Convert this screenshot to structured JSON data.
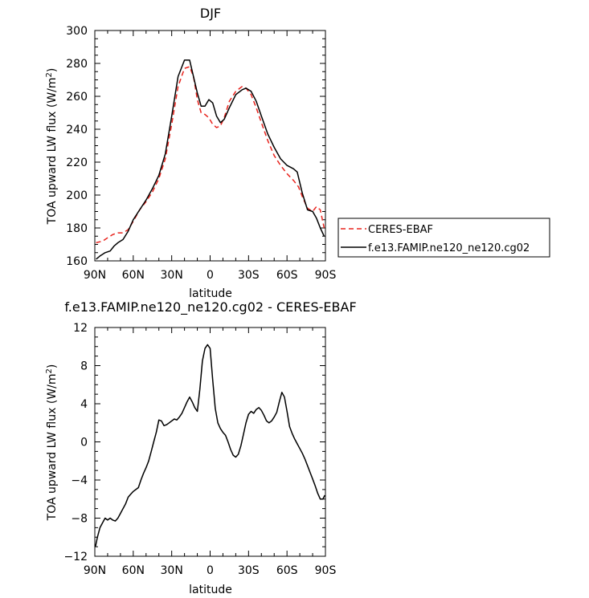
{
  "chart_data": [
    {
      "type": "line",
      "title": "DJF",
      "xlabel": "latitude",
      "ylabel": "TOA upward LW flux (W/m",
      "ylabel_sup": "2",
      "ylabel_close": ")",
      "xlim": [
        90,
        -90
      ],
      "ylim": [
        160,
        300
      ],
      "xticks": [
        90,
        60,
        30,
        0,
        -30,
        -60,
        -90
      ],
      "xtick_labels": [
        "90N",
        "60N",
        "30N",
        "0",
        "30S",
        "60S",
        "90S"
      ],
      "yticks": [
        160,
        180,
        200,
        220,
        240,
        260,
        280,
        300
      ],
      "legend": {
        "placement": "right"
      },
      "series": [
        {
          "name": "CERES-EBAF",
          "color": "#e8231d",
          "dash": "dashed",
          "x": [
            89,
            84,
            80,
            76,
            72,
            68,
            64,
            60,
            55,
            50,
            45,
            40,
            35,
            30,
            25,
            20,
            16,
            13,
            10,
            7,
            4,
            1,
            -2,
            -5,
            -8,
            -11,
            -15,
            -20,
            -25,
            -28,
            -32,
            -36,
            -40,
            -45,
            -50,
            -55,
            -60,
            -65,
            -69,
            -72,
            -76,
            -80,
            -83,
            -86,
            -89
          ],
          "y": [
            171,
            172,
            174,
            176,
            177,
            177,
            179,
            184,
            191,
            196,
            202,
            210,
            222,
            243,
            266,
            277,
            278,
            272,
            258,
            250,
            249,
            247,
            243,
            241,
            242,
            247,
            257,
            263,
            266,
            265,
            261,
            253,
            244,
            233,
            224,
            218,
            213,
            209,
            205,
            199,
            192,
            190,
            193,
            191,
            180
          ]
        },
        {
          "name": "f.e13.FAMIP.ne120_ne120.cg02",
          "color": "#000000",
          "dash": "solid",
          "x": [
            89,
            86,
            82,
            78,
            75,
            72,
            68,
            64,
            60,
            55,
            50,
            45,
            40,
            35,
            30,
            25,
            20,
            16,
            13,
            10,
            7,
            4,
            1,
            -2,
            -5,
            -8,
            -11,
            -15,
            -20,
            -25,
            -28,
            -32,
            -36,
            -40,
            -45,
            -50,
            -55,
            -60,
            -65,
            -68,
            -72,
            -76,
            -80,
            -83,
            -86,
            -89
          ],
          "y": [
            161,
            163,
            165,
            166,
            169,
            171,
            173,
            178,
            185,
            191,
            197,
            204,
            212,
            225,
            248,
            272,
            282,
            282,
            272,
            262,
            254,
            254,
            258,
            256,
            248,
            244,
            246,
            253,
            261,
            264,
            265,
            263,
            257,
            248,
            237,
            229,
            222,
            218,
            216,
            214,
            201,
            191,
            190,
            186,
            180,
            175
          ]
        }
      ]
    },
    {
      "type": "line",
      "title": "f.e13.FAMIP.ne120_ne120.cg02 - CERES-EBAF",
      "xlabel": "latitude",
      "ylabel": "TOA upward LW flux (W/m",
      "ylabel_sup": "2",
      "ylabel_close": ")",
      "xlim": [
        90,
        -90
      ],
      "ylim": [
        -12,
        12
      ],
      "xticks": [
        90,
        60,
        30,
        0,
        -30,
        -60,
        -90
      ],
      "xtick_labels": [
        "90N",
        "60N",
        "30N",
        "0",
        "30S",
        "60S",
        "90S"
      ],
      "yticks": [
        -12,
        -8,
        -4,
        0,
        4,
        8,
        12
      ],
      "series": [
        {
          "color": "#000000",
          "dash": "solid",
          "x": [
            89.5,
            88,
            86,
            84,
            82,
            80,
            78,
            76,
            74,
            72,
            70,
            68,
            66,
            64,
            62,
            60,
            58,
            56,
            54,
            52,
            50,
            48,
            46,
            44,
            42,
            40,
            38,
            36,
            34,
            32,
            30,
            28,
            26,
            24,
            22,
            20,
            18,
            16,
            14,
            12,
            10,
            8,
            6,
            4,
            2,
            0,
            -2,
            -4,
            -6,
            -8,
            -10,
            -12,
            -14,
            -16,
            -18,
            -20,
            -22,
            -24,
            -26,
            -28,
            -30,
            -32,
            -34,
            -36,
            -38,
            -40,
            -42,
            -44,
            -46,
            -48,
            -50,
            -52,
            -54,
            -56,
            -58,
            -60,
            -62,
            -64,
            -66,
            -68,
            -70,
            -72,
            -74,
            -76,
            -78,
            -80,
            -82,
            -84,
            -86,
            -88,
            -89.5
          ],
          "y": [
            -11,
            -10,
            -9,
            -8.5,
            -8,
            -8.2,
            -8,
            -8.2,
            -8.3,
            -8,
            -7.5,
            -7,
            -6.5,
            -5.8,
            -5.5,
            -5.2,
            -5,
            -4.8,
            -4,
            -3.3,
            -2.7,
            -2,
            -1,
            0,
            1,
            2.3,
            2.2,
            1.7,
            1.8,
            2,
            2.2,
            2.4,
            2.3,
            2.6,
            3,
            3.6,
            4.2,
            4.7,
            4.2,
            3.6,
            3.2,
            5.5,
            8.5,
            9.8,
            10.2,
            9.8,
            6.5,
            3.5,
            2,
            1.4,
            1,
            0.7,
            0,
            -0.8,
            -1.4,
            -1.6,
            -1.3,
            -0.4,
            0.8,
            2,
            2.9,
            3.2,
            3,
            3.4,
            3.6,
            3.3,
            2.8,
            2.2,
            2,
            2.2,
            2.6,
            3.1,
            4.2,
            5.2,
            4.7,
            3.2,
            1.6,
            0.9,
            0.3,
            -0.2,
            -0.7,
            -1.2,
            -1.8,
            -2.5,
            -3.2,
            -3.9,
            -4.6,
            -5.4,
            -6,
            -6,
            -5.6
          ]
        }
      ]
    }
  ]
}
